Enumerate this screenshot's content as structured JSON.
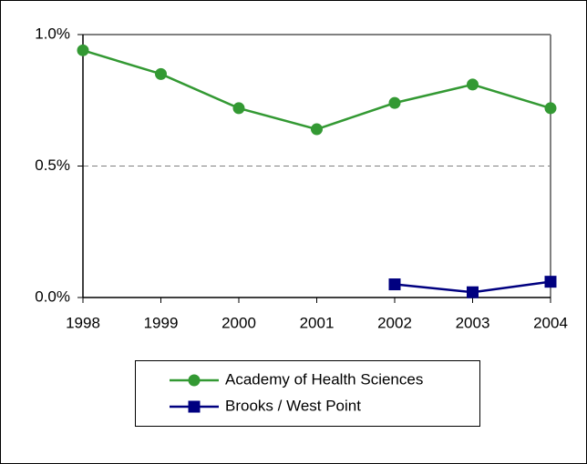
{
  "chart_data": {
    "type": "line",
    "categories": [
      "1998",
      "1999",
      "2000",
      "2001",
      "2002",
      "2003",
      "2004"
    ],
    "series": [
      {
        "name": "Academy of Health Sciences",
        "color": "#339933",
        "marker": "circle",
        "values": [
          0.94,
          0.85,
          0.72,
          0.64,
          0.74,
          0.81,
          0.72
        ]
      },
      {
        "name": "Brooks / West Point",
        "color": "#000080",
        "marker": "square",
        "values": [
          null,
          null,
          null,
          null,
          0.05,
          0.02,
          0.06
        ]
      }
    ],
    "ylim": [
      0,
      1.0
    ],
    "yticks": [
      {
        "value": 0,
        "label": "0.0%"
      },
      {
        "value": 0.5,
        "label": "0.5%"
      },
      {
        "value": 1.0,
        "label": "1.0%"
      }
    ],
    "grid": true,
    "legend": "bottom"
  }
}
